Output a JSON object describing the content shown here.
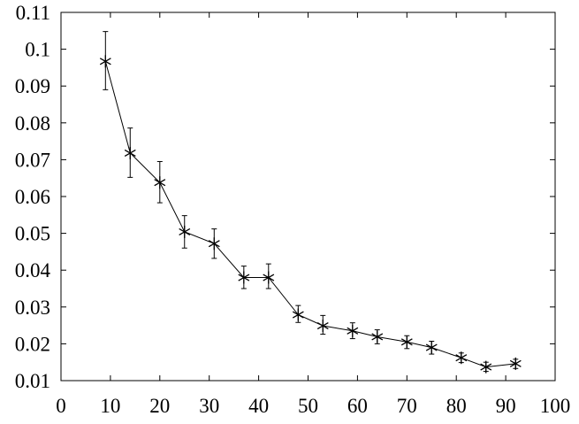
{
  "chart_data": {
    "type": "line",
    "title": "",
    "xlabel": "",
    "ylabel": "",
    "xlim": [
      0,
      100
    ],
    "ylim": [
      0.01,
      0.11
    ],
    "x_ticks": [
      0,
      10,
      20,
      30,
      40,
      50,
      60,
      70,
      80,
      90,
      100
    ],
    "y_ticks": [
      0.01,
      0.02,
      0.03,
      0.04,
      0.05,
      0.06,
      0.07,
      0.08,
      0.09,
      0.1,
      0.11
    ],
    "x_tick_labels": [
      "0",
      "10",
      "20",
      "30",
      "40",
      "50",
      "60",
      "70",
      "80",
      "90",
      "100"
    ],
    "y_tick_labels": [
      "0.01",
      "0.02",
      "0.03",
      "0.04",
      "0.05",
      "0.06",
      "0.07",
      "0.08",
      "0.09",
      "0.1",
      "0.11"
    ],
    "grid": false,
    "marker": "asterisk",
    "color": "#000000",
    "series": [
      {
        "x": [
          9,
          14,
          20,
          25,
          31,
          37,
          42,
          48,
          53,
          59,
          64,
          70,
          75,
          81,
          86,
          92
        ],
        "y": [
          0.0967,
          0.0718,
          0.0638,
          0.0504,
          0.0472,
          0.038,
          0.038,
          0.0279,
          0.0249,
          0.0235,
          0.0219,
          0.0205,
          0.019,
          0.0162,
          0.0137,
          0.0146
        ],
        "y_err_low": [
          0.089,
          0.0652,
          0.0583,
          0.046,
          0.0432,
          0.035,
          0.035,
          0.0258,
          0.0226,
          0.0214,
          0.02,
          0.0187,
          0.0172,
          0.0149,
          0.0125,
          0.0133
        ],
        "y_err_high": [
          0.1048,
          0.0786,
          0.0695,
          0.0548,
          0.0512,
          0.0411,
          0.0417,
          0.0304,
          0.0277,
          0.0257,
          0.0238,
          0.0222,
          0.0207,
          0.0175,
          0.015,
          0.0158
        ]
      }
    ]
  }
}
